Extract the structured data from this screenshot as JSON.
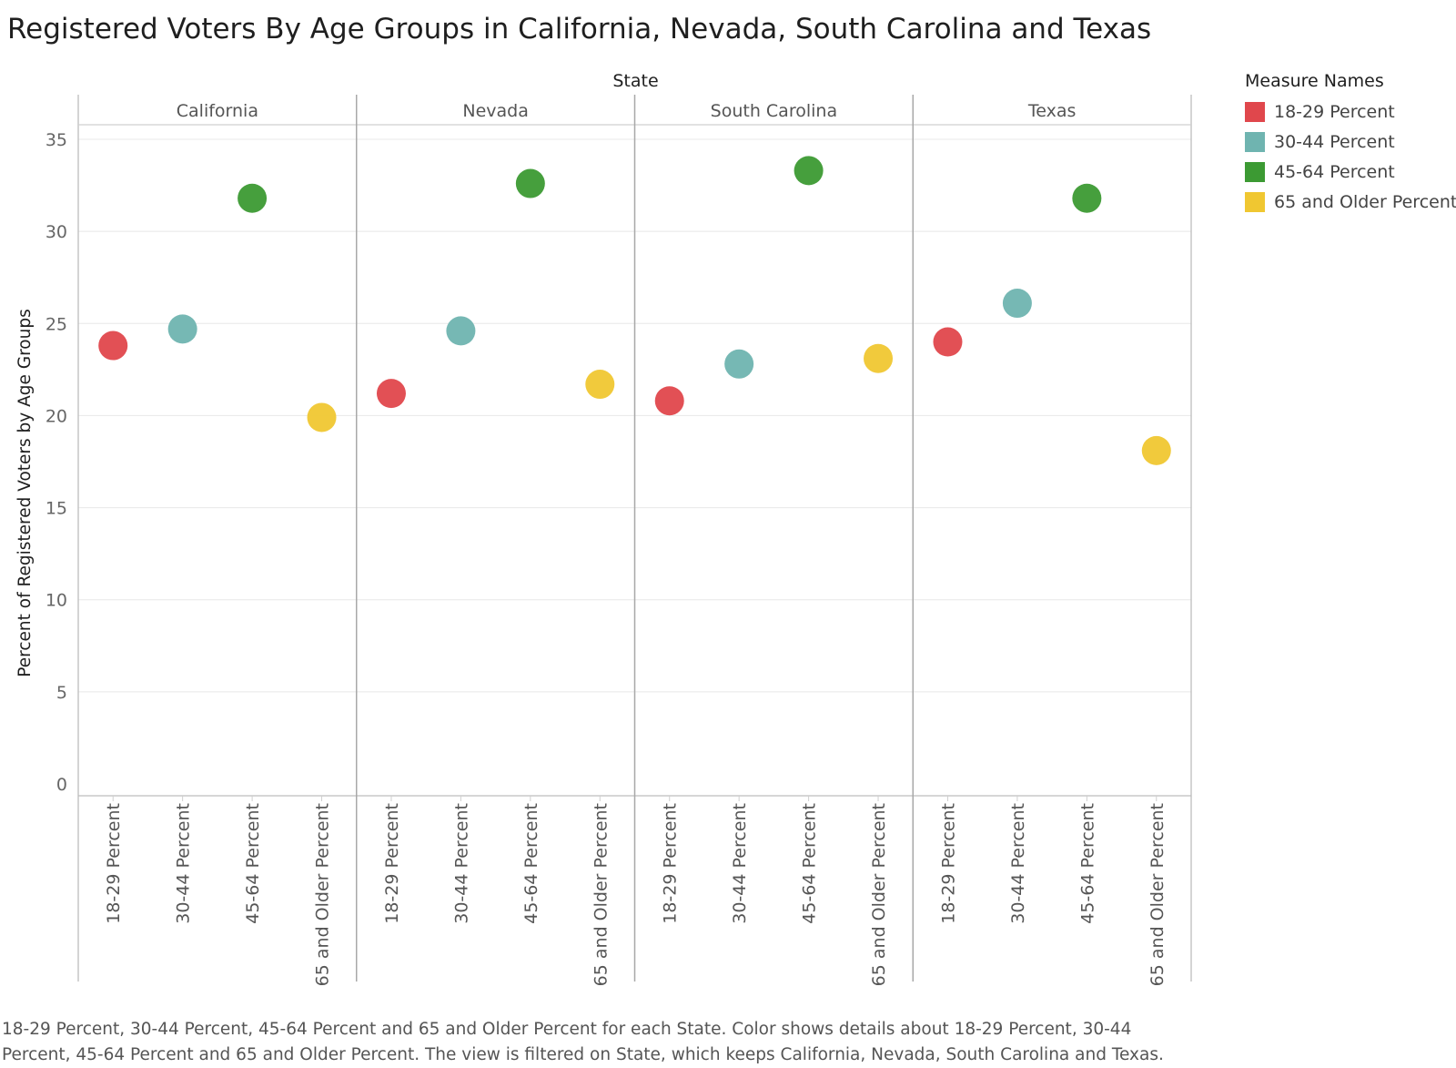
{
  "title": "Registered Voters By Age Groups in California, Nevada, South Carolina and Texas",
  "caption": "18-29 Percent, 30-44 Percent, 45-64 Percent and 65 and Older Percent for each State.  Color shows details about 18-29 Percent, 30-44 Percent, 45-64 Percent and 65 and Older Percent. The view is filtered on State, which keeps California, Nevada, South Carolina and Texas.",
  "legend": {
    "title": "Measure Names",
    "items": [
      {
        "label": "18-29 Percent",
        "color": "#e0474c"
      },
      {
        "label": "30-44 Percent",
        "color": "#6fb4b0"
      },
      {
        "label": "45-64 Percent",
        "color": "#3c9a33"
      },
      {
        "label": "65 and Older Percent",
        "color": "#f0c731"
      }
    ]
  },
  "chart_data": {
    "type": "scatter",
    "column_header": "State",
    "panels": [
      "California",
      "Nevada",
      "South Carolina",
      "Texas"
    ],
    "categories": [
      "18-29 Percent",
      "30-44 Percent",
      "45-64 Percent",
      "65 and Older Percent"
    ],
    "ylabel": "Percent of Registered Voters by Age Groups",
    "ylim": [
      0,
      35
    ],
    "yticks": [
      0,
      5,
      10,
      15,
      20,
      25,
      30,
      35
    ],
    "grid": true,
    "legend_position": "right",
    "series": [
      {
        "name": "18-29 Percent",
        "color": "#e0474c",
        "values": [
          23.8,
          21.2,
          20.8,
          24.0
        ]
      },
      {
        "name": "30-44 Percent",
        "color": "#6fb4b0",
        "values": [
          24.7,
          24.6,
          22.8,
          26.1
        ]
      },
      {
        "name": "45-64 Percent",
        "color": "#3c9a33",
        "values": [
          31.8,
          32.6,
          33.3,
          31.8
        ]
      },
      {
        "name": "65 and Older Percent",
        "color": "#f0c731",
        "values": [
          19.9,
          21.7,
          23.1,
          18.1
        ]
      }
    ]
  }
}
